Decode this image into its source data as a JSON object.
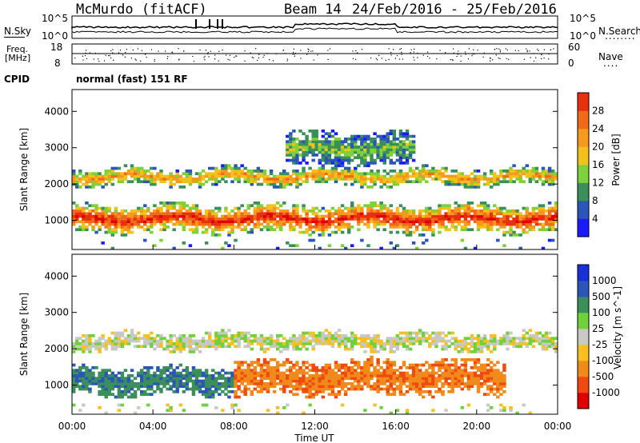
{
  "header": {
    "station": "McMurdo (fitACF)",
    "beam": "Beam 14",
    "date_range": "24/Feb/2016 - 25/Feb/2016"
  },
  "noise_panel": {
    "left_label": "N.Sky",
    "right_label": "N.Search",
    "left_ticks": [
      "10^5",
      "10^0"
    ],
    "right_ticks": [
      "10^5",
      "10^0"
    ],
    "dots": "........"
  },
  "freq_panel": {
    "left_label_1": "Freq.",
    "left_label_2": "[MHz]",
    "right_label": "Nave",
    "left_ticks": [
      "18",
      "8"
    ],
    "right_ticks": [
      "60",
      "0"
    ],
    "dots": "...."
  },
  "cpid_panel": {
    "label": "CPID",
    "text": "normal (fast) 151 RF"
  },
  "colors": {
    "power": [
      "#1a1aff",
      "#2b55b8",
      "#3a8f5a",
      "#7fd13a",
      "#f2c21b",
      "#f59a1e",
      "#f06a1a",
      "#e8300e",
      "#e00000"
    ],
    "velocity": [
      "#e00000",
      "#f04a10",
      "#f08a1a",
      "#f6c020",
      "#c8c8c4",
      "#6fd23a",
      "#3a8f5a",
      "#2b55b8",
      "#1a2fd9"
    ]
  },
  "chart_data": [
    {
      "type": "heatmap",
      "title": "",
      "xlabel": "",
      "ylabel": "Slant Range [km]",
      "colorbar_label": "Power [dB]",
      "colorbar_ticks": [
        "4",
        "8",
        "12",
        "16",
        "20",
        "24",
        "28"
      ],
      "y_ticks": [
        "1000",
        "2000",
        "3000",
        "4000"
      ],
      "ylim": [
        200,
        4600
      ],
      "xlim": [
        0,
        24
      ],
      "x_ticks": [
        "00:00",
        "04:00",
        "08:00",
        "12:00",
        "16:00",
        "20:00",
        "00:00"
      ],
      "bands": [
        {
          "name": "",
          "range_min_km": 650,
          "range_max_km": 1450,
          "hours": [
            0,
            24
          ],
          "level": 28
        },
        {
          "name": "",
          "range_min_km": 1950,
          "range_max_km": 2450,
          "hours": [
            0,
            24
          ],
          "level": 20
        },
        {
          "name": "",
          "range_min_km": 2500,
          "range_max_km": 3450,
          "hours": [
            10.5,
            17
          ],
          "level": 12
        }
      ]
    },
    {
      "type": "heatmap",
      "title": "",
      "xlabel": "Time UT",
      "ylabel": "Slant Range [km]",
      "colorbar_label": "Velocity [m s^-1]",
      "colorbar_ticks": [
        "-1000",
        "-500",
        "-100",
        "-25",
        "25",
        "100",
        "500",
        "1000"
      ],
      "y_ticks": [
        "1000",
        "2000",
        "3000",
        "4000"
      ],
      "ylim": [
        200,
        4600
      ],
      "xlim": [
        0,
        24
      ],
      "x_ticks": [
        "00:00",
        "04:00",
        "08:00",
        "12:00",
        "16:00",
        "20:00",
        "00:00"
      ],
      "bands": [
        {
          "name": "",
          "range_min_km": 700,
          "range_max_km": 1500,
          "hours": [
            0,
            8
          ],
          "velocity": 300
        },
        {
          "name": "",
          "range_min_km": 700,
          "range_max_km": 1700,
          "hours": [
            8,
            21.5
          ],
          "velocity": -300
        },
        {
          "name": "",
          "range_min_km": 1950,
          "range_max_km": 2450,
          "hours": [
            0,
            24
          ],
          "velocity": 0
        }
      ]
    }
  ]
}
